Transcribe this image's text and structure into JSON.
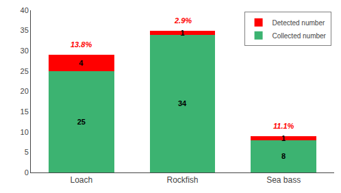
{
  "chart_data": {
    "type": "bar",
    "stacked": true,
    "categories": [
      "Loach",
      "Rockfish",
      "Sea bass"
    ],
    "series": [
      {
        "name": "Collected number",
        "color": "#3cb371",
        "values": [
          25,
          34,
          8
        ]
      },
      {
        "name": "Detected number",
        "color": "#ff0000",
        "values": [
          4,
          1,
          1
        ]
      }
    ],
    "data_labels": true,
    "annotations": [
      {
        "category": "Loach",
        "text": "13.8%",
        "color": "#ff0000"
      },
      {
        "category": "Rockfish",
        "text": "2.9%",
        "color": "#ff0000"
      },
      {
        "category": "Sea bass",
        "text": "11.1%",
        "color": "#ff0000"
      }
    ],
    "ylim": [
      0,
      40
    ],
    "yticks": [
      0,
      5,
      10,
      15,
      20,
      25,
      30,
      35,
      40
    ],
    "legend": "upper right",
    "grid": false
  }
}
